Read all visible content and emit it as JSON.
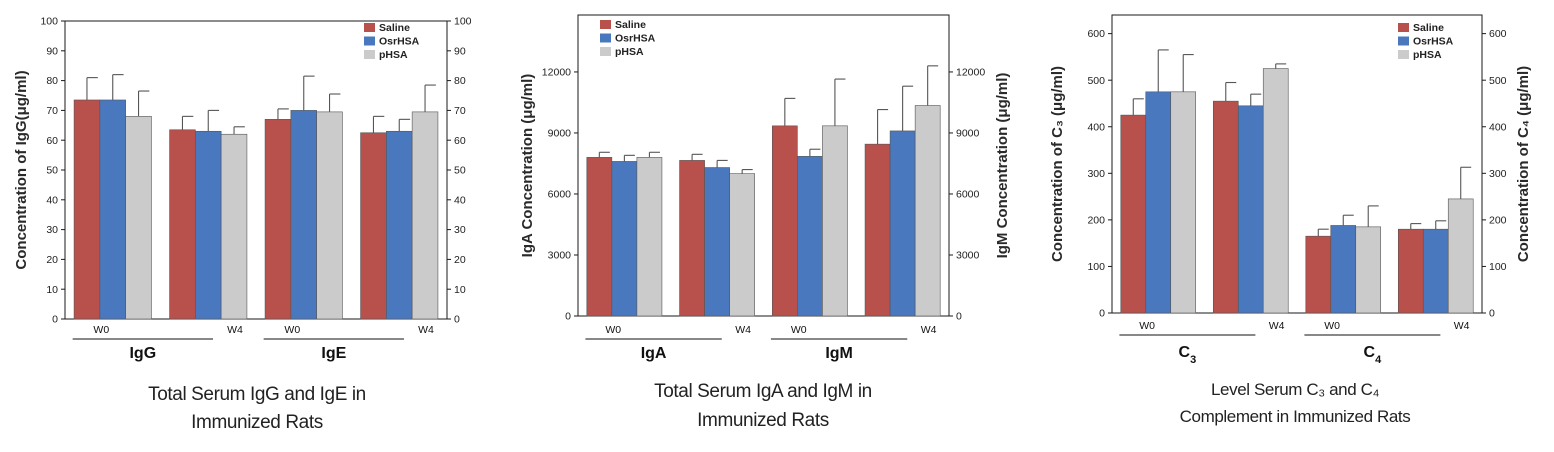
{
  "colors": {
    "Saline": "#b8504c",
    "OsrHSA": "#4a78be",
    "pHSA": "#cbcbcb"
  },
  "chart_data": [
    {
      "type": "bar",
      "title": "Total Serum IgG and IgE in Immunized Rats",
      "title_lines": [
        "Total Serum IgG and IgE in",
        "Immunized Rats"
      ],
      "ylabel_left": "Concentration of IgG(μg/ml)",
      "ylabel_right": "",
      "ylim_left": [
        0,
        100
      ],
      "ylim_right": [
        0,
        100
      ],
      "yticks_left": [
        0,
        10,
        20,
        30,
        40,
        50,
        60,
        70,
        80,
        90,
        100
      ],
      "yticks_right": [
        0,
        10,
        20,
        30,
        40,
        50,
        60,
        70,
        80,
        90,
        100
      ],
      "grid": false,
      "legend": "top-right",
      "series_names": [
        "Saline",
        "OsrHSA",
        "pHSA"
      ],
      "groups": [
        {
          "label": "IgG",
          "sub": "",
          "axis": "left",
          "categories": [
            {
              "label": "W0",
              "values": [
                73.5,
                73.5,
                68
              ],
              "errors": [
                7.5,
                8.5,
                8.5
              ]
            },
            {
              "label": "W4",
              "values": [
                63.5,
                63,
                62
              ],
              "errors": [
                4.5,
                7,
                2.5
              ]
            }
          ]
        },
        {
          "label": "IgE",
          "sub": "",
          "axis": "right",
          "categories": [
            {
              "label": "W0",
              "values": [
                67,
                70,
                69.5
              ],
              "errors": [
                3.5,
                11.5,
                6
              ]
            },
            {
              "label": "W4",
              "values": [
                62.5,
                63,
                69.5
              ],
              "errors": [
                5.5,
                4,
                9
              ]
            }
          ]
        }
      ]
    },
    {
      "type": "bar",
      "title": "Total Serum IgA and IgM in Immunized Rats",
      "title_lines": [
        "Total Serum IgA and IgM in",
        "Immunized Rats"
      ],
      "ylabel_left": "IgA Concentration (μg/ml)",
      "ylabel_right": "IgM Concentration (μg/ml)",
      "ylim_left": [
        0,
        14800
      ],
      "ylim_right": [
        0,
        14800
      ],
      "yticks_left": [
        0,
        3000,
        6000,
        9000,
        12000
      ],
      "yticks_right": [
        0,
        3000,
        6000,
        9000,
        12000
      ],
      "grid": false,
      "legend": "top-left",
      "series_names": [
        "Saline",
        "OsrHSA",
        "pHSA"
      ],
      "groups": [
        {
          "label": "IgA",
          "sub": "",
          "axis": "left",
          "categories": [
            {
              "label": "W0",
              "values": [
                7800,
                7600,
                7800
              ],
              "errors": [
                250,
                300,
                250
              ]
            },
            {
              "label": "W4",
              "values": [
                7650,
                7300,
                7000
              ],
              "errors": [
                300,
                350,
                200
              ]
            }
          ]
        },
        {
          "label": "IgM",
          "sub": "",
          "axis": "right",
          "categories": [
            {
              "label": "W0",
              "values": [
                9350,
                7850,
                9350
              ],
              "errors": [
                1350,
                350,
                2300
              ]
            },
            {
              "label": "W4",
              "values": [
                8450,
                9100,
                10350
              ],
              "errors": [
                1700,
                2200,
                1950
              ]
            }
          ]
        }
      ]
    },
    {
      "type": "bar",
      "title": "Level Serum C3 and C4 Complement in Immunized Rats",
      "title_lines": [
        "Level Serum C₃ and C₄",
        "Complement in Immunized Rats"
      ],
      "ylabel_left": "Concentration of C₃ (μg/ml)",
      "ylabel_right": "Concentration of C₄ (μg/ml)",
      "ylim_left": [
        0,
        640
      ],
      "ylim_right": [
        0,
        640
      ],
      "yticks_left": [
        0,
        100,
        200,
        300,
        400,
        500,
        600
      ],
      "yticks_right": [
        0,
        100,
        200,
        300,
        400,
        500,
        600
      ],
      "grid": false,
      "legend": "top-right",
      "series_names": [
        "Saline",
        "OsrHSA",
        "pHSA"
      ],
      "groups": [
        {
          "label": "C",
          "sub": "3",
          "axis": "left",
          "categories": [
            {
              "label": "W0",
              "values": [
                425,
                475,
                475
              ],
              "errors": [
                35,
                90,
                80
              ]
            },
            {
              "label": "W4",
              "values": [
                455,
                445,
                525
              ],
              "errors": [
                40,
                25,
                10
              ]
            }
          ]
        },
        {
          "label": "C",
          "sub": "4",
          "axis": "right",
          "categories": [
            {
              "label": "W0",
              "values": [
                165,
                188,
                185
              ],
              "errors": [
                15,
                22,
                45
              ]
            },
            {
              "label": "W4",
              "values": [
                180,
                180,
                245
              ],
              "errors": [
                12,
                18,
                68
              ]
            }
          ]
        }
      ]
    }
  ]
}
